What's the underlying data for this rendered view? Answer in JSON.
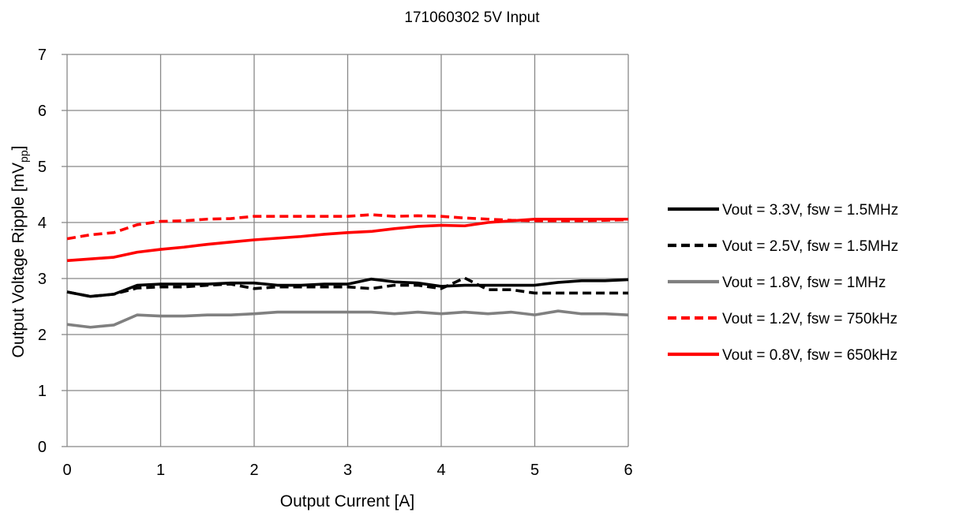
{
  "chart_data": {
    "type": "line",
    "title": "171060302  5V Input",
    "xlabel": "Output Current [A]",
    "ylabel": {
      "main": "Output Voltage Ripple [mV",
      "sub": "pp",
      "close": "]"
    },
    "xlim": [
      0,
      6
    ],
    "ylim": [
      0,
      7
    ],
    "xticks": [
      "0",
      "1",
      "2",
      "3",
      "4",
      "5",
      "6"
    ],
    "yticks": [
      "0",
      "1",
      "2",
      "3",
      "4",
      "5",
      "6",
      "7"
    ],
    "grid": true,
    "legend_position": "right",
    "x": [
      0,
      0.25,
      0.5,
      0.75,
      1,
      1.25,
      1.5,
      1.75,
      2,
      2.25,
      2.5,
      2.75,
      3,
      3.25,
      3.5,
      3.75,
      4,
      4.25,
      4.5,
      4.75,
      5,
      5.25,
      5.5,
      5.75,
      6
    ],
    "series": [
      {
        "name": "Vout = 3.3V, fsw = 1.5MHz",
        "color": "#000000",
        "dash": "solid",
        "values": [
          2.76,
          2.68,
          2.72,
          2.88,
          2.9,
          2.9,
          2.9,
          2.92,
          2.92,
          2.88,
          2.88,
          2.9,
          2.9,
          2.99,
          2.94,
          2.92,
          2.86,
          2.88,
          2.88,
          2.88,
          2.88,
          2.93,
          2.96,
          2.96,
          2.98
        ]
      },
      {
        "name": "Vout = 2.5V, fsw = 1.5MHz",
        "color": "#000000",
        "dash": "dashed",
        "values": [
          2.76,
          2.68,
          2.72,
          2.83,
          2.85,
          2.85,
          2.88,
          2.9,
          2.82,
          2.85,
          2.85,
          2.85,
          2.85,
          2.82,
          2.88,
          2.88,
          2.82,
          3.01,
          2.8,
          2.8,
          2.74,
          2.74,
          2.74,
          2.74,
          2.74
        ]
      },
      {
        "name": "Vout = 1.8V, fsw = 1MHz",
        "color": "#808080",
        "dash": "solid",
        "values": [
          2.18,
          2.13,
          2.17,
          2.35,
          2.33,
          2.33,
          2.35,
          2.35,
          2.37,
          2.4,
          2.4,
          2.4,
          2.4,
          2.4,
          2.37,
          2.4,
          2.37,
          2.4,
          2.37,
          2.4,
          2.35,
          2.42,
          2.37,
          2.37,
          2.35
        ]
      },
      {
        "name": "Vout = 1.2V, fsw = 750kHz",
        "color": "#ff0000",
        "dash": "dashed",
        "values": [
          3.71,
          3.78,
          3.82,
          3.96,
          4.02,
          4.03,
          4.06,
          4.07,
          4.11,
          4.11,
          4.11,
          4.11,
          4.11,
          4.14,
          4.11,
          4.12,
          4.11,
          4.08,
          4.06,
          4.04,
          4.03,
          4.03,
          4.03,
          4.04,
          4.05
        ]
      },
      {
        "name": "Vout = 0.8V, fsw = 650kHz",
        "color": "#ff0000",
        "dash": "solid",
        "values": [
          3.32,
          3.35,
          3.38,
          3.47,
          3.52,
          3.56,
          3.61,
          3.65,
          3.69,
          3.72,
          3.75,
          3.79,
          3.82,
          3.84,
          3.89,
          3.93,
          3.95,
          3.94,
          4.0,
          4.03,
          4.06,
          4.06,
          4.06,
          4.06,
          4.06
        ]
      }
    ]
  }
}
